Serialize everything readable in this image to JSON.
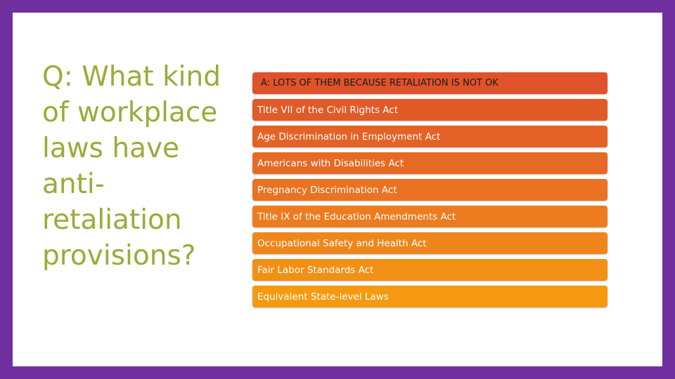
{
  "slide": {
    "question": "Q: What kind of workplace laws have anti-retaliation provisions?",
    "answers": [
      {
        "label": "A: LOTS OF THEM BECAUSE RETALIATION IS NOT OK",
        "color": "#E0532A"
      },
      {
        "label": "Title VII of the Civil Rights Act",
        "color": "#E25A28"
      },
      {
        "label": "Age Discrimination in Employment Act",
        "color": "#E46226"
      },
      {
        "label": "Americans with Disabilities Act",
        "color": "#E66A24"
      },
      {
        "label": "Pregnancy Discrimination Act",
        "color": "#E97322"
      },
      {
        "label": "Title IX of the Education Amendments Act",
        "color": "#EC7C1F"
      },
      {
        "label": "Occupational Safety and Health Act",
        "color": "#EF861B"
      },
      {
        "label": "Fair Labor Standards Act",
        "color": "#F29016"
      },
      {
        "label": "Equivalent State-level Laws",
        "color": "#F59A10"
      }
    ]
  },
  "colors": {
    "frame": "#7030A0",
    "background": "#FFFFFF",
    "question_text": "#9BAB3A"
  }
}
